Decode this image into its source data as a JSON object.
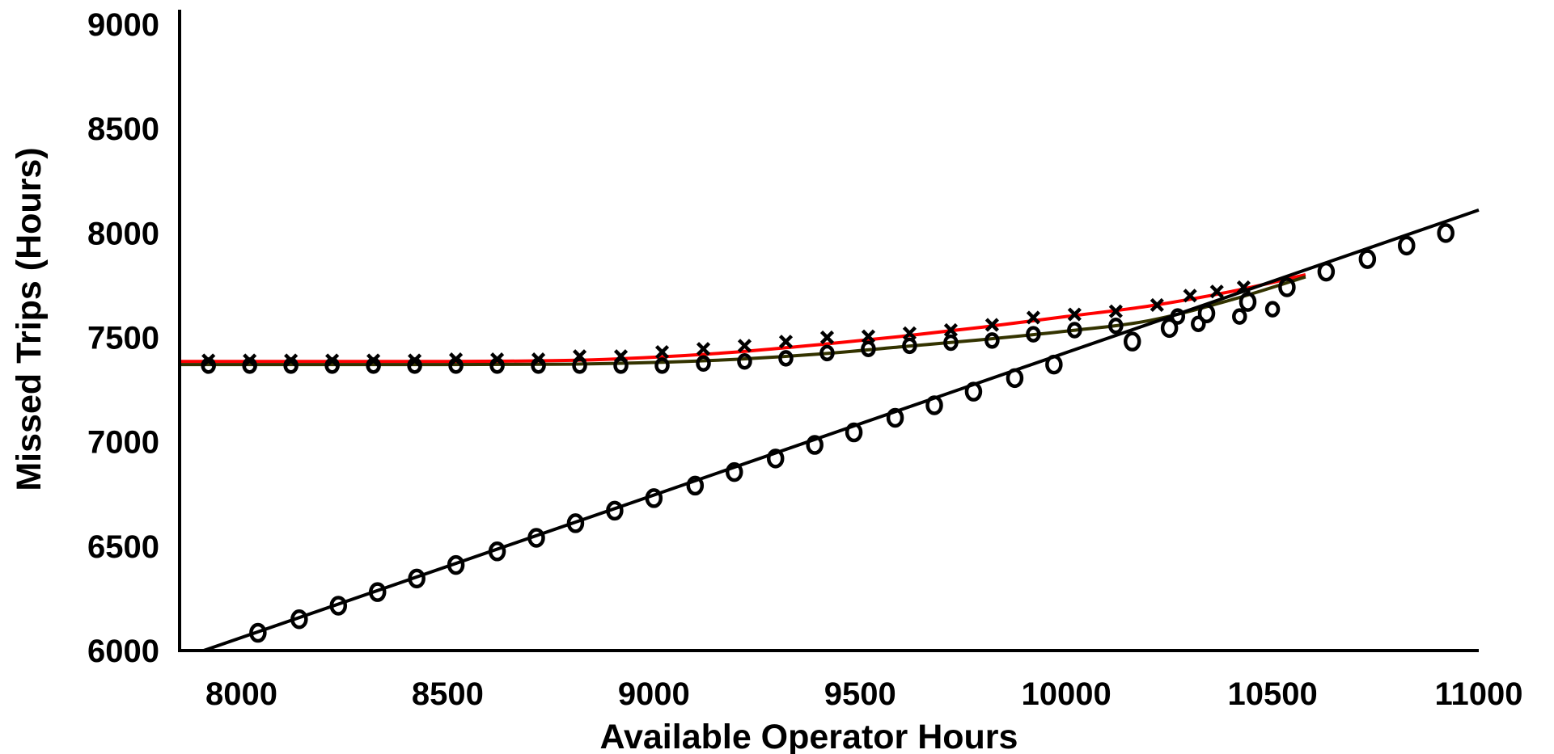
{
  "chart_data": {
    "type": "scatter",
    "title": "",
    "xlabel": "Available Operator Hours",
    "ylabel": "Missed Trips (Hours)",
    "xlim": [
      7850,
      11000
    ],
    "ylim": [
      6000,
      9000
    ],
    "x_ticks": [
      8000,
      8500,
      9000,
      9500,
      10000,
      10500,
      11000
    ],
    "y_ticks": [
      6000,
      6500,
      7000,
      7500,
      8000,
      8500,
      9000
    ],
    "legend": "none",
    "grid": false,
    "series": [
      {
        "marker": "x",
        "color": "#000000",
        "points": [
          [
            7920,
            7390
          ],
          [
            8020,
            7390
          ],
          [
            8120,
            7390
          ],
          [
            8220,
            7390
          ],
          [
            8320,
            7390
          ],
          [
            8420,
            7390
          ],
          [
            8520,
            7395
          ],
          [
            8620,
            7395
          ],
          [
            8720,
            7395
          ],
          [
            8820,
            7410
          ],
          [
            8920,
            7410
          ],
          [
            9020,
            7430
          ],
          [
            9120,
            7445
          ],
          [
            9220,
            7460
          ],
          [
            9320,
            7480
          ],
          [
            9420,
            7500
          ],
          [
            9520,
            7505
          ],
          [
            9620,
            7520
          ],
          [
            9720,
            7535
          ],
          [
            9820,
            7560
          ],
          [
            9920,
            7595
          ],
          [
            10020,
            7610
          ],
          [
            10120,
            7625
          ],
          [
            10220,
            7655
          ],
          [
            10300,
            7700
          ],
          [
            10365,
            7720
          ],
          [
            10430,
            7740
          ]
        ]
      },
      {
        "marker": "o",
        "color": "#000000",
        "points": [
          [
            7920,
            7365
          ],
          [
            8020,
            7365
          ],
          [
            8120,
            7365
          ],
          [
            8220,
            7365
          ],
          [
            8320,
            7365
          ],
          [
            8420,
            7365
          ],
          [
            8520,
            7365
          ],
          [
            8620,
            7365
          ],
          [
            8720,
            7365
          ],
          [
            8820,
            7365
          ],
          [
            8920,
            7365
          ],
          [
            9020,
            7365
          ],
          [
            9120,
            7375
          ],
          [
            9220,
            7385
          ],
          [
            9320,
            7400
          ],
          [
            9420,
            7425
          ],
          [
            9520,
            7445
          ],
          [
            9620,
            7460
          ],
          [
            9720,
            7475
          ],
          [
            9820,
            7485
          ],
          [
            9920,
            7515
          ],
          [
            10020,
            7535
          ],
          [
            10120,
            7555
          ],
          [
            10270,
            7600
          ],
          [
            10320,
            7565
          ],
          [
            10420,
            7600
          ],
          [
            10500,
            7635
          ]
        ]
      },
      {
        "marker": "O",
        "color": "#000000",
        "points": [
          [
            8040,
            6085
          ],
          [
            8140,
            6150
          ],
          [
            8235,
            6215
          ],
          [
            8330,
            6280
          ],
          [
            8425,
            6345
          ],
          [
            8520,
            6410
          ],
          [
            8620,
            6475
          ],
          [
            8715,
            6540
          ],
          [
            8810,
            6610
          ],
          [
            8905,
            6670
          ],
          [
            9000,
            6730
          ],
          [
            9100,
            6790
          ],
          [
            9195,
            6855
          ],
          [
            9295,
            6920
          ],
          [
            9390,
            6985
          ],
          [
            9485,
            7045
          ],
          [
            9585,
            7115
          ],
          [
            9680,
            7175
          ],
          [
            9775,
            7240
          ],
          [
            9875,
            7305
          ],
          [
            9970,
            7370
          ],
          [
            10160,
            7480
          ],
          [
            10250,
            7545
          ],
          [
            10340,
            7615
          ],
          [
            10440,
            7670
          ],
          [
            10535,
            7740
          ],
          [
            10630,
            7815
          ],
          [
            10730,
            7875
          ],
          [
            10825,
            7940
          ],
          [
            10920,
            8000
          ]
        ]
      }
    ],
    "lines": [
      {
        "name": "",
        "color": "#ff0000",
        "points": [
          [
            7850,
            7385
          ],
          [
            8500,
            7385
          ],
          [
            8800,
            7390
          ],
          [
            9000,
            7405
          ],
          [
            9200,
            7430
          ],
          [
            9400,
            7465
          ],
          [
            9600,
            7505
          ],
          [
            9800,
            7550
          ],
          [
            10000,
            7600
          ],
          [
            10200,
            7650
          ],
          [
            10400,
            7720
          ],
          [
            10580,
            7800
          ]
        ]
      },
      {
        "name": "",
        "color": "#333300",
        "points": [
          [
            7850,
            7370
          ],
          [
            8500,
            7370
          ],
          [
            8800,
            7372
          ],
          [
            9000,
            7380
          ],
          [
            9200,
            7395
          ],
          [
            9400,
            7420
          ],
          [
            9600,
            7455
          ],
          [
            9800,
            7490
          ],
          [
            10000,
            7530
          ],
          [
            10200,
            7580
          ],
          [
            10400,
            7680
          ],
          [
            10580,
            7790
          ]
        ]
      },
      {
        "name": "",
        "color": "#000000",
        "points": [
          [
            7850,
            5960
          ],
          [
            11000,
            8110
          ]
        ]
      }
    ]
  }
}
